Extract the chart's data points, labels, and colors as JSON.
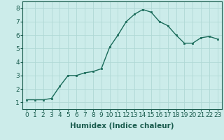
{
  "x": [
    0,
    1,
    2,
    3,
    4,
    5,
    6,
    7,
    8,
    9,
    10,
    11,
    12,
    13,
    14,
    15,
    16,
    17,
    18,
    19,
    20,
    21,
    22,
    23
  ],
  "y": [
    1.2,
    1.2,
    1.2,
    1.3,
    2.2,
    3.0,
    3.0,
    3.2,
    3.3,
    3.5,
    5.1,
    6.0,
    7.0,
    7.55,
    7.9,
    7.7,
    7.0,
    6.7,
    6.0,
    5.4,
    5.4,
    5.8,
    5.9,
    5.7
  ],
  "line_color": "#1a6b5a",
  "marker": "s",
  "marker_size": 2,
  "bg_color": "#ccecea",
  "grid_color": "#b0d8d5",
  "xlabel": "Humidex (Indice chaleur)",
  "xlim": [
    -0.5,
    23.5
  ],
  "ylim": [
    0.5,
    8.5
  ],
  "yticks": [
    1,
    2,
    3,
    4,
    5,
    6,
    7,
    8
  ],
  "xticks": [
    0,
    1,
    2,
    3,
    4,
    5,
    6,
    7,
    8,
    9,
    10,
    11,
    12,
    13,
    14,
    15,
    16,
    17,
    18,
    19,
    20,
    21,
    22,
    23
  ],
  "tick_fontsize": 6.5,
  "xlabel_fontsize": 7.5
}
